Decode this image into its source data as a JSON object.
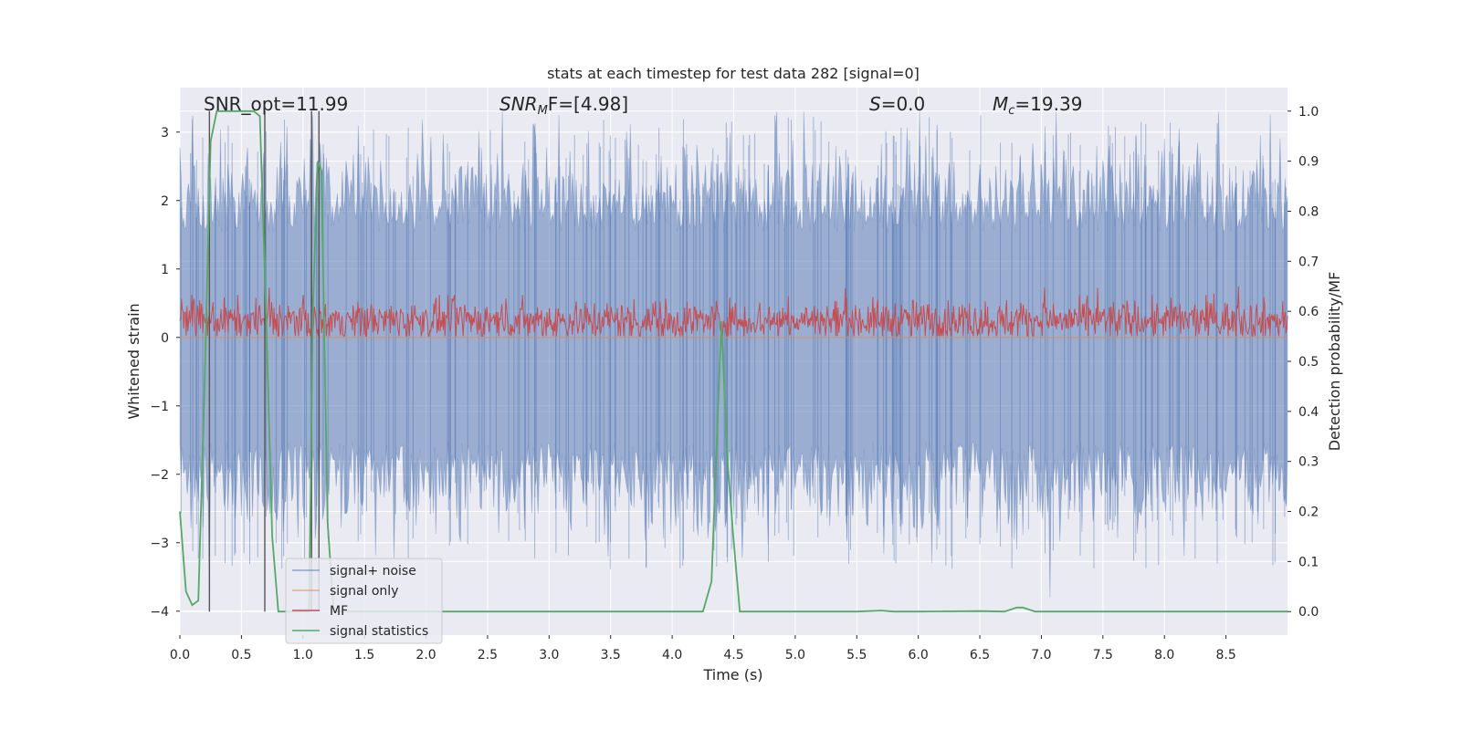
{
  "chart_data": {
    "type": "line",
    "title": "stats at each timestep for test data 282 [signal=0]",
    "xlabel": "Time (s)",
    "ylabel_left": "Whitened strain",
    "ylabel_right": "Detection probability/MF",
    "xlim": [
      0.0,
      9.0
    ],
    "ylim_left": [
      -4.35,
      3.65
    ],
    "ylim_right": [
      -0.047,
      1.047
    ],
    "x_ticks": [
      "0.0",
      "0.5",
      "1.0",
      "1.5",
      "2.0",
      "2.5",
      "3.0",
      "3.5",
      "4.0",
      "4.5",
      "5.0",
      "5.5",
      "6.0",
      "6.5",
      "7.0",
      "7.5",
      "8.0",
      "8.5"
    ],
    "y_ticks_left": [
      "−4",
      "−3",
      "−2",
      "−1",
      "0",
      "1",
      "2",
      "3"
    ],
    "y_ticks_right": [
      "0.0",
      "0.1",
      "0.2",
      "0.3",
      "0.4",
      "0.5",
      "0.6",
      "0.7",
      "0.8",
      "0.9",
      "1.0"
    ],
    "grid": true,
    "background": "#eaeaf2",
    "annotations": {
      "snr_opt": "SNR_opt=11.99",
      "snr_mf_label": "SNR",
      "snr_mf_sub": "M",
      "snr_mf_rest": "F=[4.98]",
      "s_label": "S",
      "s_rest": "=0.0",
      "mc_label": "M",
      "mc_sub": "c",
      "mc_rest": "=19.39"
    },
    "legend": {
      "placement": "lower-left",
      "entries": [
        {
          "label": "signal+ noise",
          "color": "#4c72b0"
        },
        {
          "label": "signal only",
          "color": "#dd8452"
        },
        {
          "label": "MF",
          "color": "#c44e52"
        },
        {
          "label": "signal statistics",
          "color": "#55a868"
        }
      ]
    },
    "series": [
      {
        "name": "signal+ noise",
        "color": "#4c72b0",
        "axis": "left",
        "style": "noise band",
        "typical_amplitude": 1.8,
        "peak_amplitude": 3.3
      },
      {
        "name": "signal only",
        "color": "#dd8452",
        "axis": "left",
        "values_note": "flat near 0"
      },
      {
        "name": "MF",
        "color": "#c44e52",
        "axis": "left",
        "style": "noise band",
        "center": 0.25,
        "amplitude": 0.25
      },
      {
        "name": "signal statistics",
        "color": "#55a868",
        "axis": "right",
        "x": [
          0.0,
          0.05,
          0.1,
          0.15,
          0.2,
          0.25,
          0.3,
          0.35,
          0.4,
          0.5,
          0.6,
          0.65,
          0.7,
          0.75,
          0.8,
          0.85,
          0.9,
          0.95,
          1.0,
          1.05,
          1.08,
          1.12,
          1.15,
          1.2,
          1.25,
          1.3,
          1.35,
          1.4,
          1.5,
          2.0,
          3.0,
          4.0,
          4.25,
          4.32,
          4.4,
          4.45,
          4.5,
          4.55,
          4.6,
          4.7,
          5.0,
          5.5,
          5.7,
          5.8,
          6.0,
          6.5,
          6.7,
          6.8,
          6.85,
          6.95,
          7.2,
          8.0,
          9.0
        ],
        "y": [
          0.2,
          0.04,
          0.013,
          0.022,
          0.45,
          0.94,
          1.0,
          1.0,
          1.0,
          1.0,
          1.0,
          0.99,
          0.6,
          0.15,
          0.0,
          0.0,
          0.0,
          0.0,
          0.0,
          0.0,
          0.6,
          0.9,
          0.88,
          0.18,
          0.0,
          0.0,
          0.0,
          0.0,
          0.0,
          0.0,
          0.0,
          0.0,
          0.0,
          0.06,
          0.58,
          0.3,
          0.14,
          0.0,
          0.0,
          0.0,
          0.0,
          0.0,
          0.002,
          0.0,
          0.0,
          0.001,
          0.0,
          0.008,
          0.008,
          0.0,
          0.0,
          0.0,
          0.0
        ]
      }
    ],
    "vertical_markers_x": [
      0.24,
      0.69,
      1.07,
      1.13
    ]
  }
}
